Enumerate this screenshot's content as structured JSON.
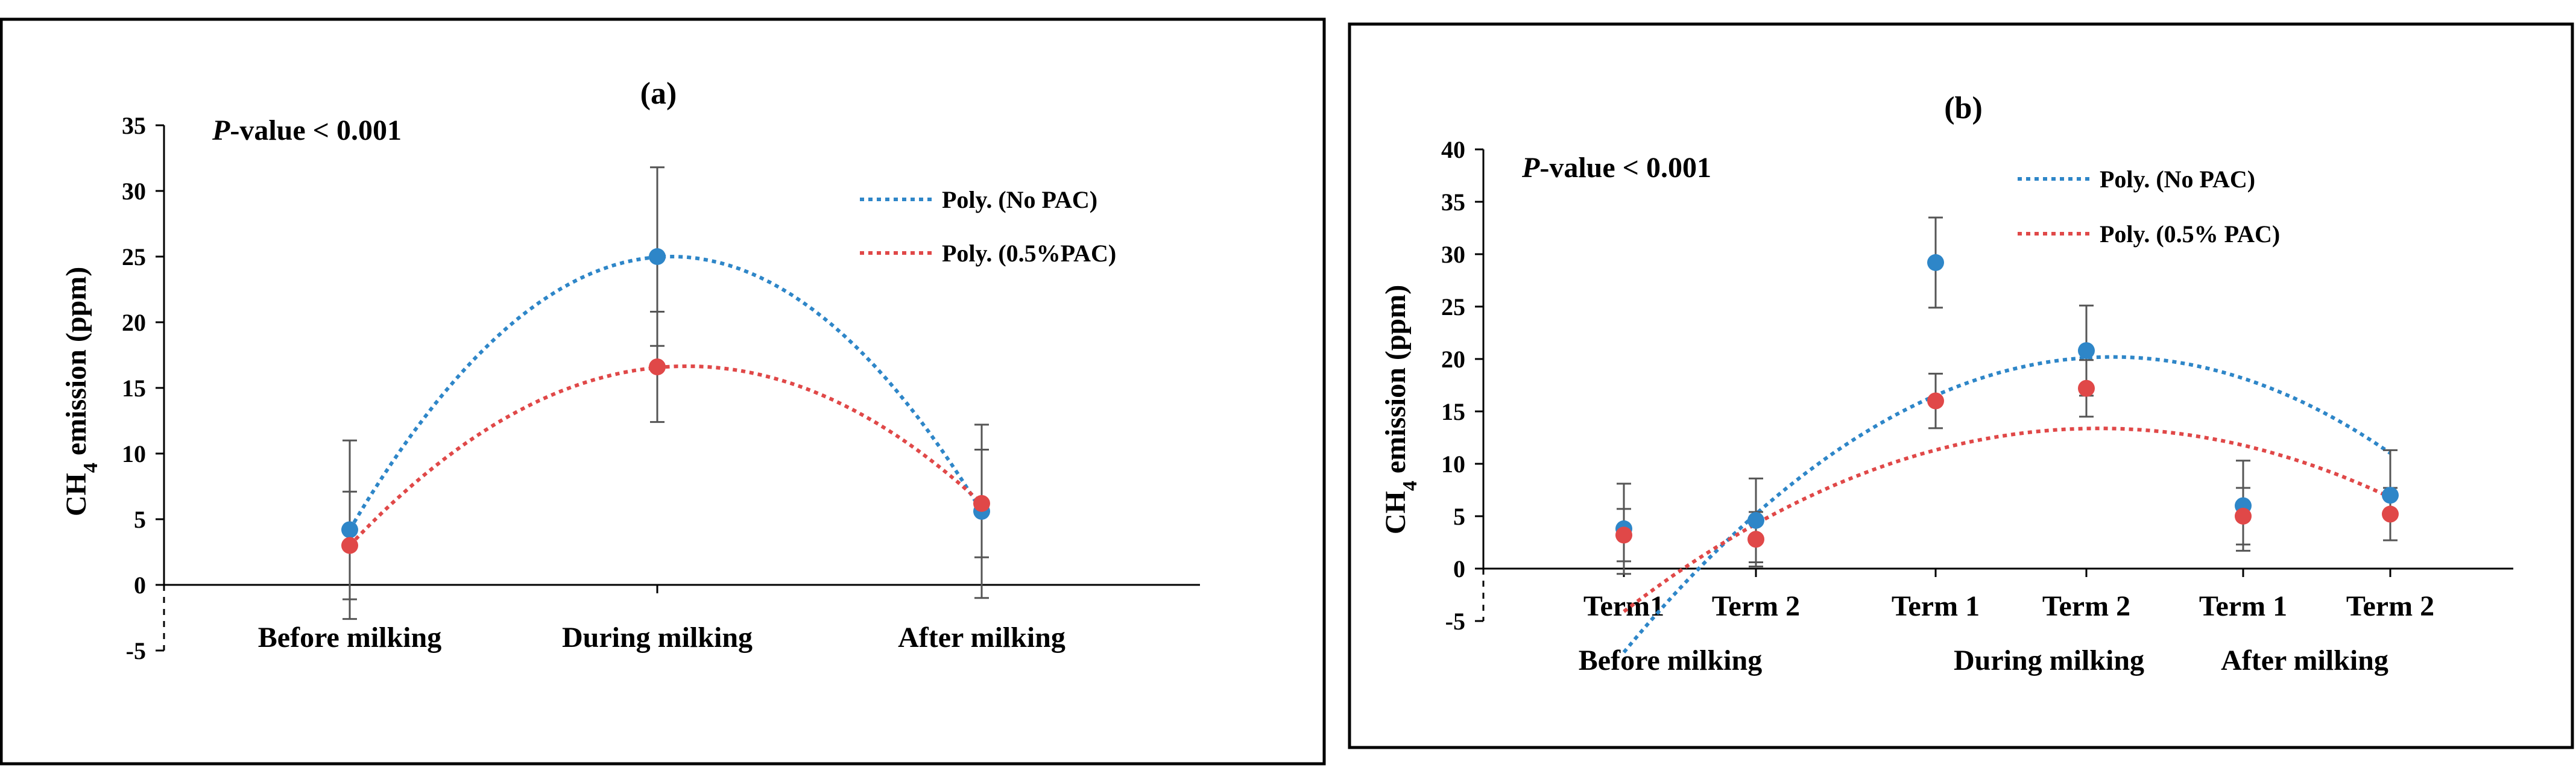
{
  "chart_data": [
    {
      "type": "scatter",
      "panel_label": "(a)",
      "annotation_p": "P",
      "annotation_rest": "-value < 0.001",
      "ylabel_pre": "CH",
      "ylabel_sub": "4",
      "ylabel_post": " emission (ppm)",
      "ylim": [
        -5,
        35
      ],
      "yticks": [
        -5,
        0,
        5,
        10,
        15,
        20,
        25,
        30,
        35
      ],
      "categories": [
        "Before milking",
        "During  milking",
        "After milking"
      ],
      "series": [
        {
          "name": "Poly. (No PAC)",
          "color": "#2e86c8",
          "values": [
            4.2,
            25.0,
            5.6
          ],
          "errors": [
            6.8,
            6.8,
            6.6
          ],
          "trend": [
            4.2,
            25.0,
            5.6
          ]
        },
        {
          "name": "Poly. (0.5%PAC)",
          "color": "#e04848",
          "values": [
            3.0,
            16.6,
            6.2
          ],
          "errors": [
            4.1,
            4.2,
            4.1
          ],
          "trend": [
            3.0,
            16.6,
            6.2
          ]
        }
      ]
    },
    {
      "type": "scatter",
      "panel_label": "(b)",
      "annotation_p": "P",
      "annotation_rest": "-value < 0.001",
      "ylabel_pre": "CH",
      "ylabel_sub": "4",
      "ylabel_post": " emission (ppm)",
      "ylim": [
        -5,
        40
      ],
      "yticks": [
        -5,
        0,
        5,
        10,
        15,
        20,
        25,
        30,
        35,
        40
      ],
      "categories": [
        "Term1",
        "Term 2",
        "Term  1",
        "Term  2",
        "Term  1",
        "Term  2"
      ],
      "groups": [
        "Before milking",
        "During  milking",
        "After milking"
      ],
      "series": [
        {
          "name": "Poly. (No PAC)",
          "color": "#2e86c8",
          "values": [
            3.8,
            4.6,
            29.2,
            20.8,
            6.0,
            7.0
          ],
          "errors": [
            4.3,
            4.0,
            4.3,
            4.3,
            4.3,
            4.3
          ],
          "trend_coef": [
            -2.78,
            23.26,
            -28.46
          ]
        },
        {
          "name": "Poly. (0.5%  PAC)",
          "color": "#e04848",
          "values": [
            3.2,
            2.8,
            16.0,
            17.2,
            5.0,
            5.2
          ],
          "errors": [
            2.5,
            2.6,
            2.6,
            2.7,
            2.7,
            2.5
          ],
          "trend_coef": [
            -1.82,
            14.92,
            -17.2
          ]
        }
      ]
    }
  ]
}
